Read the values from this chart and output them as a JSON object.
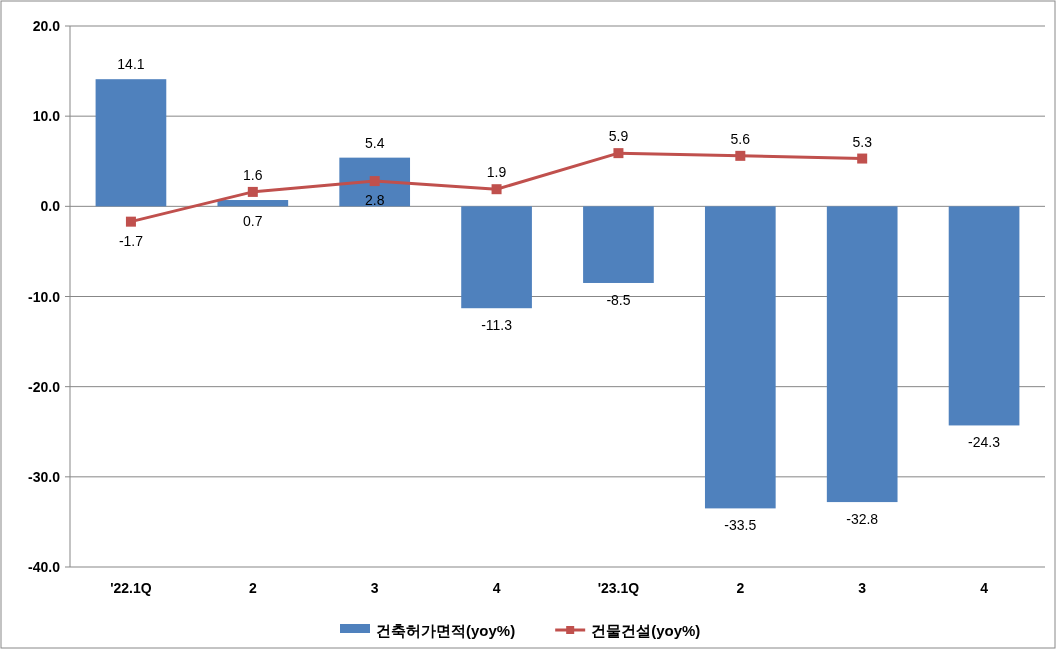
{
  "chart_data": {
    "type": "bar",
    "categories": [
      "'22.1Q",
      "2",
      "3",
      "4",
      "'23.1Q",
      "2",
      "3",
      "4"
    ],
    "series": [
      {
        "name": "건축허가면적(yoy%)",
        "color": "#4f81bd",
        "values": [
          14.1,
          0.7,
          5.4,
          -11.3,
          -8.5,
          -33.5,
          -32.8,
          -24.3
        ]
      },
      {
        "name": "건물건설(yoy%)",
        "type": "line",
        "color": "#c0504d",
        "marker": "square",
        "values": [
          -1.7,
          1.6,
          2.8,
          1.9,
          5.9,
          5.6,
          5.3,
          null
        ]
      }
    ],
    "ylim": [
      -40,
      20
    ],
    "yticks": [
      {
        "value": -40,
        "label": "-40.0"
      },
      {
        "value": -30,
        "label": "-30.0"
      },
      {
        "value": -20,
        "label": "-20.0"
      },
      {
        "value": -10,
        "label": "-10.0"
      },
      {
        "value": 0,
        "label": "0.0"
      },
      {
        "value": 10,
        "label": "10.0"
      },
      {
        "value": 20,
        "label": "20.0"
      }
    ],
    "grid": "y",
    "legend": "bottom",
    "data_labels": true
  }
}
